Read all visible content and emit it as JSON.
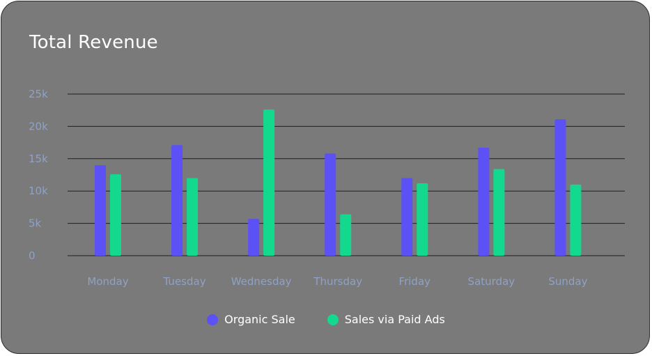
{
  "chart_data": {
    "type": "bar",
    "title": "Total Revenue",
    "categories": [
      "Monday",
      "Tuesday",
      "Wednesday",
      "Thursday",
      "Friday",
      "Saturday",
      "Sunday"
    ],
    "series": [
      {
        "name": "Organic Sale",
        "color": "#5b51f4",
        "values": [
          14000,
          17100,
          5700,
          15800,
          12000,
          16700,
          21100
        ]
      },
      {
        "name": "Sales via Paid Ads",
        "color": "#13d98e",
        "values": [
          12600,
          12000,
          22600,
          6400,
          11200,
          13400,
          11000
        ]
      }
    ],
    "y_ticks": [
      "0",
      "5k",
      "10k",
      "15k",
      "20k",
      "25k"
    ],
    "ylim": [
      0,
      25000
    ],
    "grid": true,
    "legend_position": "bottom",
    "tick_color": "#8fa2c4",
    "grid_color": "#1f1f1f"
  }
}
